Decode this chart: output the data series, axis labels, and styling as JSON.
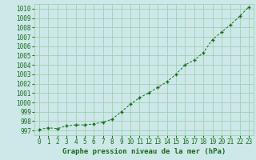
{
  "x": [
    0,
    1,
    2,
    3,
    4,
    5,
    6,
    7,
    8,
    9,
    10,
    11,
    12,
    13,
    14,
    15,
    16,
    17,
    18,
    19,
    20,
    21,
    22,
    23
  ],
  "y": [
    997.1,
    997.3,
    997.2,
    997.5,
    997.6,
    997.6,
    997.7,
    997.9,
    998.2,
    999.0,
    999.8,
    1000.5,
    1001.0,
    1001.6,
    1002.2,
    1003.0,
    1004.0,
    1004.5,
    1005.3,
    1006.7,
    1007.5,
    1008.3,
    1009.2,
    1010.2
  ],
  "line_color": "#1a6b1a",
  "marker_color": "#1a6b1a",
  "bg_color": "#cce8e8",
  "grid_color": "#99ccaa",
  "xlabel": "Graphe pression niveau de la mer (hPa)",
  "xlim": [
    -0.5,
    23.5
  ],
  "ylim": [
    996.5,
    1010.5
  ],
  "yticks": [
    997,
    998,
    999,
    1000,
    1001,
    1002,
    1003,
    1004,
    1005,
    1006,
    1007,
    1008,
    1009,
    1010
  ],
  "xticks": [
    0,
    1,
    2,
    3,
    4,
    5,
    6,
    7,
    8,
    9,
    10,
    11,
    12,
    13,
    14,
    15,
    16,
    17,
    18,
    19,
    20,
    21,
    22,
    23
  ],
  "tick_fontsize": 5.5,
  "xlabel_fontsize": 6.5
}
